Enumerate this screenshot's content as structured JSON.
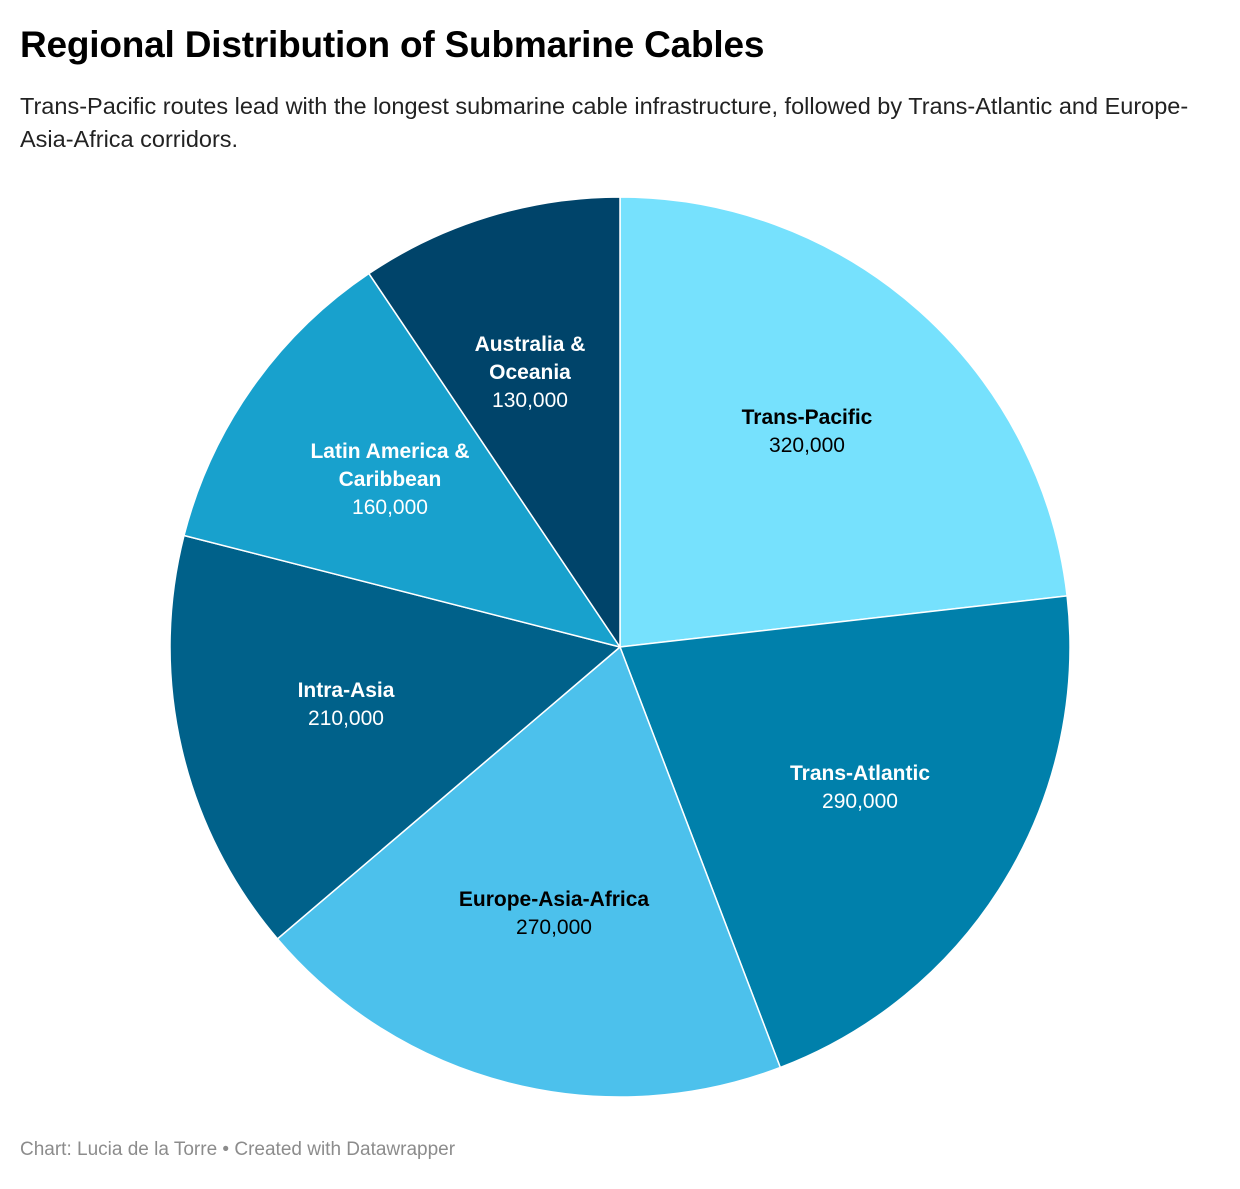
{
  "header": {
    "title": "Regional Distribution of Submarine Cables",
    "subtitle": "Trans-Pacific routes lead with the longest submarine cable infrastructure, followed by Trans-Atlantic and Europe-Asia-Africa corridors."
  },
  "footer": {
    "credit": "Chart: Lucia de la Torre • Created with Datawrapper"
  },
  "chart_data": {
    "type": "pie",
    "title": "Regional Distribution of Submarine Cables",
    "subtitle": "Trans-Pacific routes lead with the longest submarine cable infrastructure, followed by Trans-Atlantic and Europe-Asia-Africa corridors.",
    "start": "12 o'clock, clockwise",
    "legend": "none (labels inside slices)",
    "slices": [
      {
        "label": "Trans-Pacific",
        "value": 320000,
        "value_label": "320,000",
        "color": "#76e1fd",
        "label_color": "#000000"
      },
      {
        "label": "Trans-Atlantic",
        "value": 290000,
        "value_label": "290,000",
        "color": "#0080ab",
        "label_color": "#ffffff"
      },
      {
        "label": "Europe-Asia-Africa",
        "value": 270000,
        "value_label": "270,000",
        "color": "#4cc1ec",
        "label_color": "#000000"
      },
      {
        "label": "Intra-Asia",
        "value": 210000,
        "value_label": "210,000",
        "color": "#00618a",
        "label_color": "#ffffff"
      },
      {
        "label": "Latin America & Caribbean",
        "value": 160000,
        "value_label": "160,000",
        "color": "#18a1cd",
        "label_color": "#ffffff"
      },
      {
        "label": "Australia & Oceania",
        "value": 130000,
        "value_label": "130,000",
        "color": "#00446a",
        "label_color": "#ffffff"
      }
    ]
  }
}
